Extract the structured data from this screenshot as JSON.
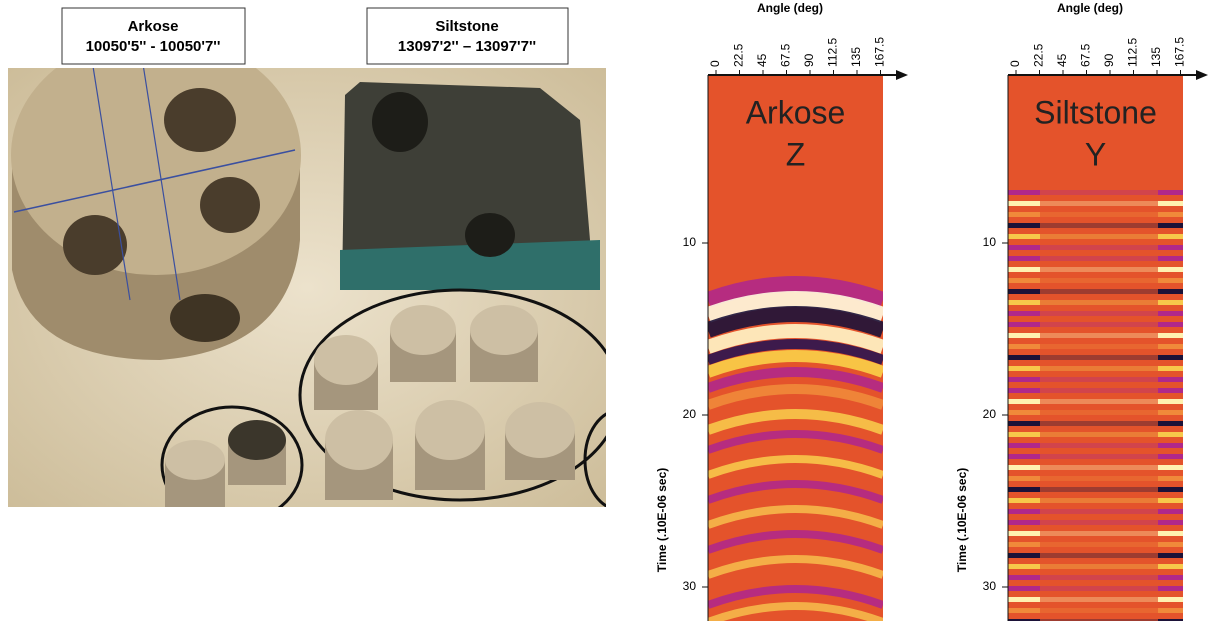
{
  "photo": {
    "labels": [
      {
        "rock": "Arkose",
        "depth": "10050'5'' - 10050'7''"
      },
      {
        "rock": "Siltstone",
        "depth": "13097'2'' – 13097'7''"
      }
    ]
  },
  "panels": [
    {
      "x_title": "Angle (deg)",
      "x_ticks": [
        "0",
        "22.5",
        "45",
        "67.5",
        "90",
        "112.5",
        "135",
        "167.5"
      ],
      "y_title": "Time (.10E-06 sec)",
      "y_ticks": [
        "10",
        "20",
        "30"
      ],
      "label": "Arkose",
      "component": "Z"
    },
    {
      "x_title": "Angle (deg)",
      "x_ticks": [
        "0",
        "22.5",
        "45",
        "67.5",
        "90",
        "112.5",
        "135",
        "167.5"
      ],
      "y_title": "Time (.10E-06 sec)",
      "y_ticks": [
        "10",
        "20",
        "30"
      ],
      "label": "Siltstone",
      "component": "Y"
    }
  ]
}
